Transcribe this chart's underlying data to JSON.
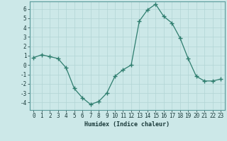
{
  "x": [
    0,
    1,
    2,
    3,
    4,
    5,
    6,
    7,
    8,
    9,
    10,
    11,
    12,
    13,
    14,
    15,
    16,
    17,
    18,
    19,
    20,
    21,
    22,
    23
  ],
  "y": [
    0.8,
    1.1,
    0.9,
    0.7,
    -0.3,
    -2.5,
    -3.5,
    -4.2,
    -3.9,
    -3.0,
    -1.2,
    -0.5,
    0.0,
    4.7,
    5.9,
    6.5,
    5.2,
    4.5,
    2.9,
    0.7,
    -1.2,
    -1.7,
    -1.7,
    -1.5
  ],
  "xlabel": "Humidex (Indice chaleur)",
  "ylim": [
    -4.8,
    6.8
  ],
  "xlim": [
    -0.5,
    23.5
  ],
  "yticks": [
    -4,
    -3,
    -2,
    -1,
    0,
    1,
    2,
    3,
    4,
    5,
    6
  ],
  "xticks": [
    0,
    1,
    2,
    3,
    4,
    5,
    6,
    7,
    8,
    9,
    10,
    11,
    12,
    13,
    14,
    15,
    16,
    17,
    18,
    19,
    20,
    21,
    22,
    23
  ],
  "line_color": "#2e7d6e",
  "marker_color": "#2e7d6e",
  "bg_color": "#cce8e8",
  "grid_color": "#b2d4d4",
  "xlabel_fontsize": 6.0,
  "tick_fontsize": 5.5
}
